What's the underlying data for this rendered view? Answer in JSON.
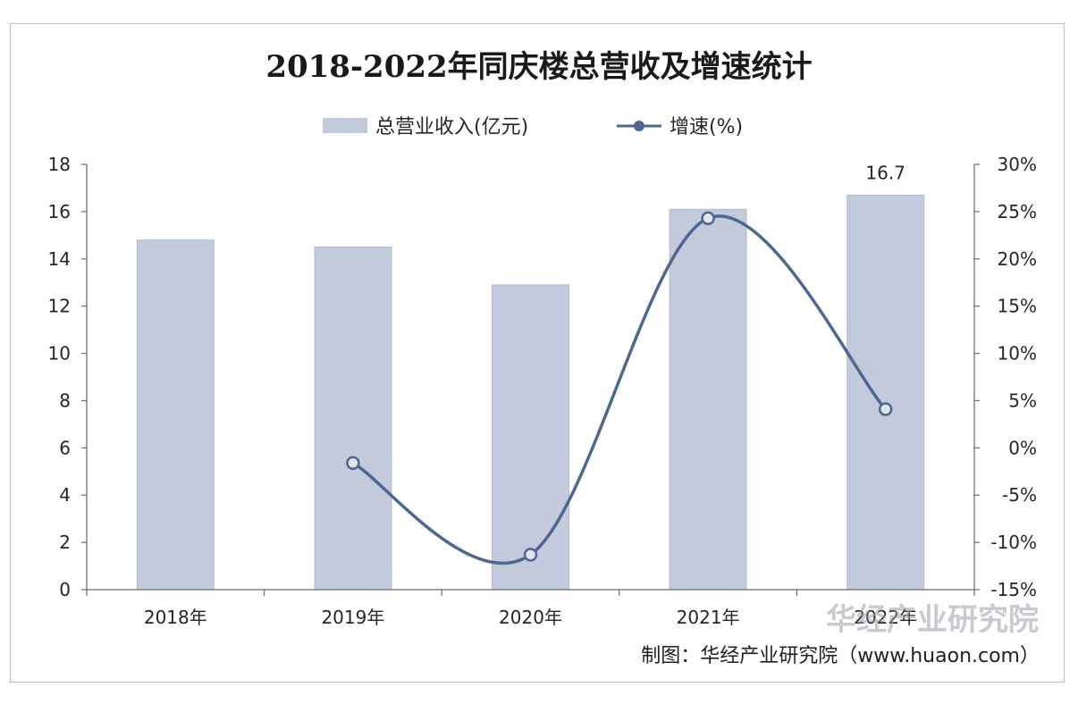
{
  "chart_data": {
    "type": "bar",
    "title": "2018-2022年同庆楼总营收及增速统计",
    "categories": [
      "2018年",
      "2019年",
      "2020年",
      "2021年",
      "2022年"
    ],
    "series": [
      {
        "name": "总营业收入(亿元)",
        "kind": "bar",
        "axis": "left",
        "values": [
          14.8,
          14.5,
          12.9,
          16.1,
          16.7
        ]
      },
      {
        "name": "增速(%)",
        "kind": "line",
        "axis": "right",
        "values": [
          null,
          -1.6,
          -11.3,
          24.3,
          4.1
        ]
      }
    ],
    "data_labels": [
      {
        "category": "2022年",
        "text": "16.7"
      }
    ],
    "y_left": {
      "min": 0,
      "max": 18,
      "step": 2,
      "tick_labels": [
        "0",
        "2",
        "4",
        "6",
        "8",
        "10",
        "12",
        "14",
        "16",
        "18"
      ]
    },
    "y_right": {
      "min": -15,
      "max": 30,
      "step": 5,
      "tick_labels": [
        "-15%",
        "-10%",
        "-5%",
        "0%",
        "5%",
        "10%",
        "15%",
        "20%",
        "25%",
        "30%"
      ]
    },
    "legend": {
      "position": "top",
      "bar_label": "总营业收入(亿元)",
      "line_label": "增速(%)"
    },
    "grid": false
  },
  "colors": {
    "bar": "#c2cadb",
    "bar_stroke": "#b3bdd1",
    "line": "#4d6791",
    "marker_fill": "#dfe5ee",
    "axis": "#6b6b6b"
  },
  "credit": "制图：华经产业研究院（www.huaon.com）",
  "watermark": "华经产业研究院"
}
